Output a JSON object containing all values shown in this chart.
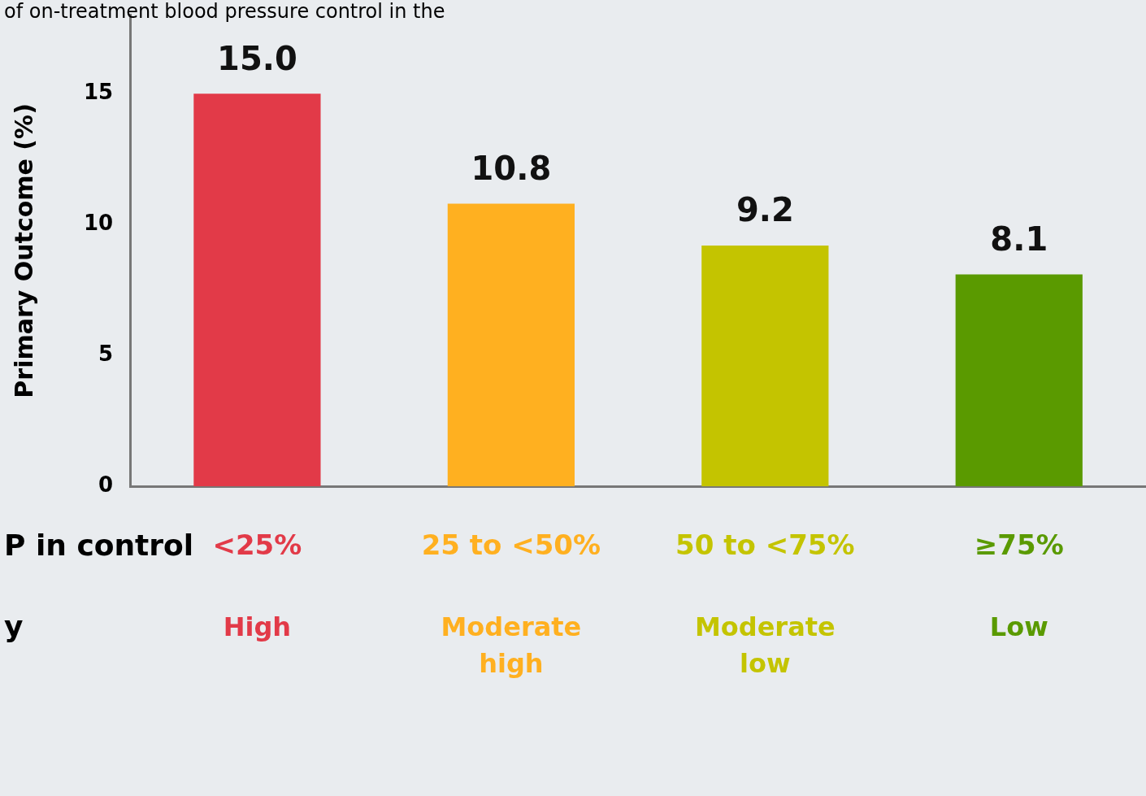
{
  "chart_data": {
    "type": "bar",
    "title": "of on-treatment blood pressure control in the",
    "ylabel": "Primary Outcome (%)",
    "categories": [
      "<25%",
      "25 to <50%",
      "50 to <75%",
      "≥75%"
    ],
    "values": [
      15.0,
      10.8,
      9.2,
      8.1
    ],
    "colors": [
      "#e23a48",
      "#ffb020",
      "#c4c400",
      "#5a9a00"
    ],
    "value_labels": [
      "15.0",
      "10.8",
      "9.2",
      "8.1"
    ],
    "ylim": [
      0,
      18
    ],
    "yticks": [
      0,
      5,
      10,
      15
    ],
    "grid": false,
    "legend": false,
    "annotations": [
      "P in control",
      "y",
      "High",
      "Moderate high",
      "Moderate low",
      "Low"
    ]
  }
}
